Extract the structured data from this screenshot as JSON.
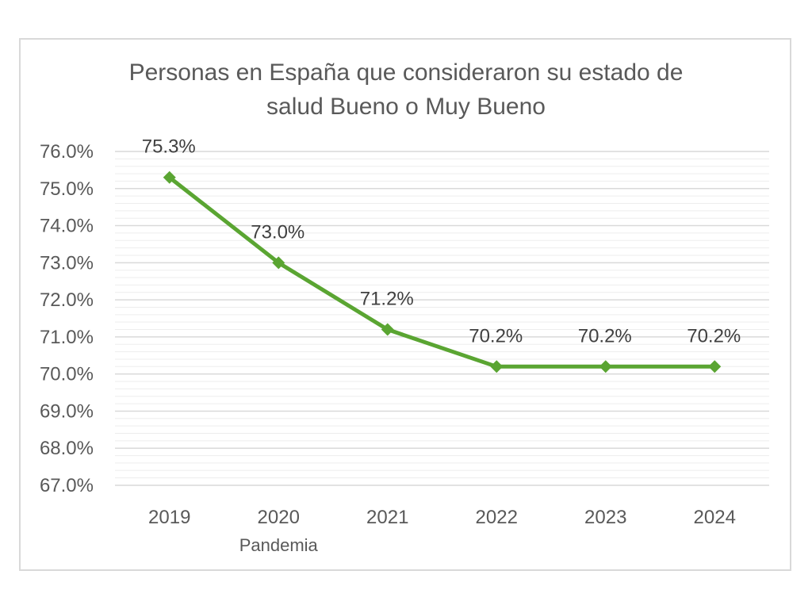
{
  "chart_data": {
    "type": "line",
    "title": [
      "Personas en España que consideraron su estado de",
      "salud Bueno o Muy Bueno"
    ],
    "categories": [
      "2019",
      "2020",
      "2021",
      "2022",
      "2023",
      "2024"
    ],
    "values": [
      75.3,
      73.0,
      71.2,
      70.2,
      70.2,
      70.2
    ],
    "data_labels": [
      "75.3%",
      "73.0%",
      "71.2%",
      "70.2%",
      "70.2%",
      "70.2%"
    ],
    "y_ticks": [
      "76.0%",
      "75.0%",
      "74.0%",
      "73.0%",
      "72.0%",
      "71.0%",
      "70.0%",
      "69.0%",
      "68.0%",
      "67.0%"
    ],
    "ylim": [
      67.0,
      76.0
    ],
    "annotations": [
      {
        "category": "2020",
        "text": "Pandemia"
      }
    ],
    "grid": true,
    "legend": "none",
    "colors": {
      "series": "#5aa532",
      "major_grid": "#d9d9d9",
      "minor_grid": "#ededed",
      "text": "#595959"
    }
  }
}
